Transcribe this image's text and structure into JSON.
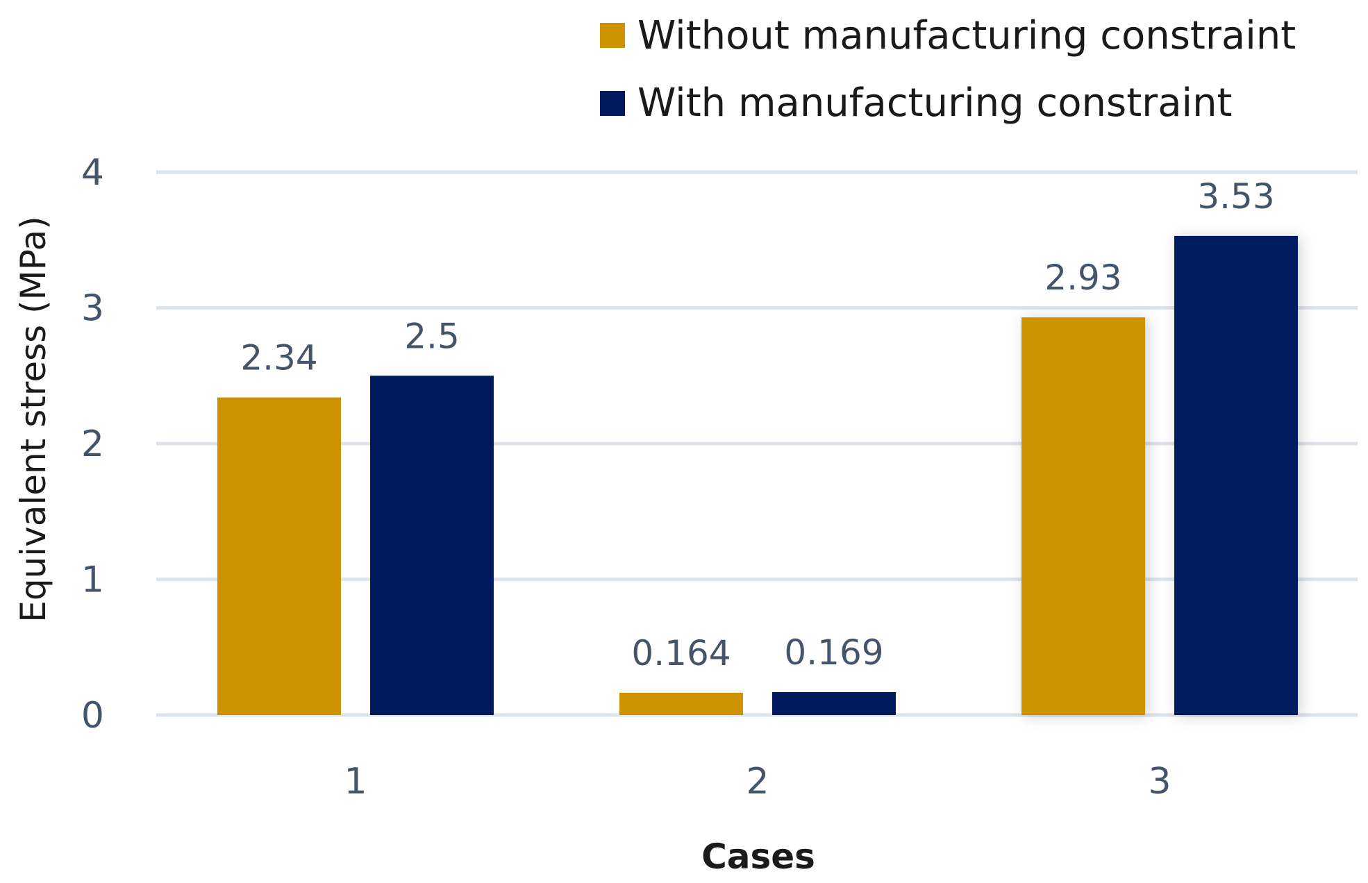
{
  "chart_data": {
    "type": "bar",
    "title": "",
    "categories": [
      "1",
      "2",
      "3"
    ],
    "series": [
      {
        "name": "Without manufacturing constraint",
        "color": "#cc9200",
        "values": [
          2.34,
          0.164,
          2.93
        ],
        "labels": [
          "2.34",
          "0.164",
          "2.93"
        ]
      },
      {
        "name": "With manufacturing constraint",
        "color": "#001a60",
        "values": [
          2.5,
          0.169,
          3.53
        ],
        "labels": [
          "2.5",
          "0.169",
          "3.53"
        ]
      }
    ],
    "xlabel": "Cases",
    "ylabel": "Equivalent stress (MPa)",
    "ylim": [
      0,
      4
    ],
    "yticks": [
      0,
      1,
      2,
      3,
      4
    ],
    "ytick_labels": [
      "0",
      "1",
      "2",
      "3",
      "4"
    ],
    "grid": true,
    "gridline_color": "#dde3ea",
    "legend_position": "top-right"
  }
}
